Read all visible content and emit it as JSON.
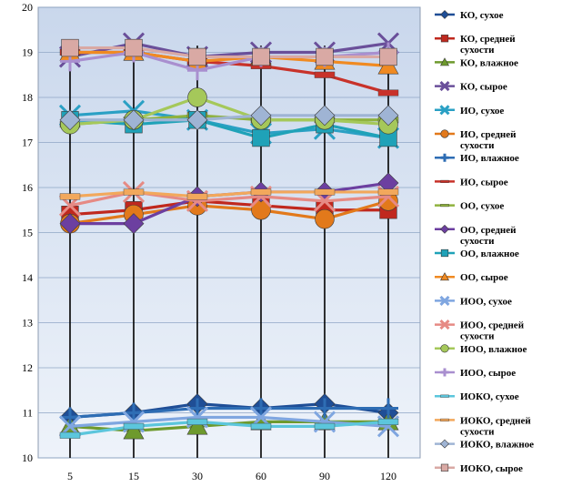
{
  "chart_data": {
    "type": "line",
    "x": [
      "5",
      "15",
      "30",
      "60",
      "90",
      "120"
    ],
    "ylim": [
      10,
      20
    ],
    "y_ticks": [
      10,
      11,
      12,
      13,
      14,
      15,
      16,
      17,
      18,
      19,
      20
    ],
    "grid": true,
    "legend_position": "right",
    "series": [
      {
        "name": "КО, сухое",
        "color": "#1F4E96",
        "marker": "diamond",
        "values": [
          10.9,
          11.0,
          11.2,
          11.1,
          11.2,
          11.0
        ]
      },
      {
        "name": "КО, средней сухости",
        "color": "#C0281E",
        "marker": "square",
        "values": [
          15.4,
          15.5,
          15.7,
          15.6,
          15.5,
          15.5
        ]
      },
      {
        "name": "КО, влажное",
        "color": "#6E9A2D",
        "marker": "triangle",
        "values": [
          10.7,
          10.6,
          10.7,
          10.8,
          10.8,
          10.8
        ]
      },
      {
        "name": "КО, сырое",
        "color": "#6A4F9A",
        "marker": "x",
        "values": [
          18.9,
          19.2,
          18.9,
          19.0,
          19.0,
          19.2
        ]
      },
      {
        "name": "ИО, сухое",
        "color": "#2AA0C4",
        "marker": "x",
        "values": [
          17.6,
          17.7,
          17.5,
          17.2,
          17.3,
          17.1
        ]
      },
      {
        "name": "ИО, средней сухости",
        "color": "#E2791B",
        "marker": "circle",
        "values": [
          15.2,
          15.4,
          15.6,
          15.5,
          15.3,
          15.7
        ]
      },
      {
        "name": "ИО, влажное",
        "color": "#2E6DB4",
        "marker": "plus",
        "values": [
          10.9,
          11.0,
          11.1,
          11.1,
          11.1,
          11.1
        ]
      },
      {
        "name": "ИО, сырое",
        "color": "#C8322A",
        "marker": "dash",
        "values": [
          19.0,
          19.0,
          18.8,
          18.7,
          18.5,
          18.1
        ]
      },
      {
        "name": "ОО, сухое",
        "color": "#8FB23E",
        "marker": "dash",
        "values": [
          17.4,
          17.5,
          17.6,
          17.5,
          17.5,
          17.5
        ]
      },
      {
        "name": "ОО, средней сухости",
        "color": "#6C3FA0",
        "marker": "diamond",
        "values": [
          15.2,
          15.2,
          15.8,
          15.9,
          15.9,
          16.1
        ]
      },
      {
        "name": "ОО, влажное",
        "color": "#1FA2B8",
        "marker": "square",
        "values": [
          17.5,
          17.4,
          17.5,
          17.1,
          17.4,
          17.1
        ]
      },
      {
        "name": "ОО, сырое",
        "color": "#F08A22",
        "marker": "triangle",
        "values": [
          19.0,
          19.0,
          18.8,
          18.9,
          18.8,
          18.7
        ]
      },
      {
        "name": "ИОО, сухое",
        "color": "#7FA6E0",
        "marker": "x",
        "values": [
          10.7,
          10.8,
          10.9,
          10.9,
          10.8,
          10.7
        ]
      },
      {
        "name": "ИОО, средней сухости",
        "color": "#E68A84",
        "marker": "x",
        "values": [
          15.6,
          15.9,
          15.7,
          15.8,
          15.7,
          15.8
        ]
      },
      {
        "name": "ИОО, влажное",
        "color": "#A5C85A",
        "marker": "circle",
        "values": [
          17.4,
          17.5,
          18.0,
          17.5,
          17.5,
          17.4
        ]
      },
      {
        "name": "ИОО, сырое",
        "color": "#A98FCF",
        "marker": "plus",
        "values": [
          18.8,
          19.0,
          18.6,
          18.9,
          18.9,
          19.0
        ]
      },
      {
        "name": "ИОКО, сухое",
        "color": "#5CC6DC",
        "marker": "dash",
        "values": [
          10.5,
          10.7,
          10.8,
          10.7,
          10.7,
          10.8
        ]
      },
      {
        "name": "ИОКО, средней сухости",
        "color": "#F2A85C",
        "marker": "dash",
        "values": [
          15.8,
          15.9,
          15.8,
          15.9,
          15.9,
          15.9
        ]
      },
      {
        "name": "ИОКО, влажное",
        "color": "#9FB4D4",
        "marker": "diamond",
        "values": [
          17.5,
          17.5,
          17.5,
          17.6,
          17.6,
          17.6
        ]
      },
      {
        "name": "ИОКО, сырое",
        "color": "#D9A9A4",
        "marker": "square",
        "values": [
          19.1,
          19.1,
          18.9,
          18.9,
          18.9,
          18.9
        ]
      }
    ]
  }
}
